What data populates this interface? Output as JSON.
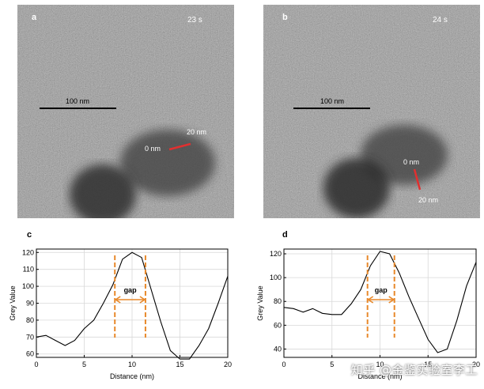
{
  "images": [
    {
      "letter": "a",
      "time": "23 s",
      "scalebar": "100 nm",
      "start_label": "0 nm",
      "end_label": "20 nm"
    },
    {
      "letter": "b",
      "time": "24 s",
      "scalebar": "100 nm",
      "start_label": "0 nm",
      "end_label": "20 nm"
    }
  ],
  "chart_data": [
    {
      "type": "line",
      "panel": "c",
      "xlabel": "Distance (nm)",
      "ylabel": "Grey Value",
      "xlim": [
        0,
        20
      ],
      "ylim": [
        58,
        122
      ],
      "xticks": [
        0,
        5,
        10,
        15,
        20
      ],
      "yticks": [
        60,
        70,
        80,
        90,
        100,
        110,
        120
      ],
      "grid": true,
      "annotation": "gap",
      "gap_range": [
        8.2,
        11.4
      ],
      "series": [
        {
          "x": [
            0,
            1,
            2,
            3,
            4,
            5,
            6,
            7,
            8,
            9,
            10,
            11,
            12,
            13,
            14,
            15,
            16,
            17,
            18,
            19,
            20
          ],
          "values": [
            70,
            71,
            68,
            65,
            68,
            75,
            80,
            90,
            101,
            116,
            120,
            117,
            98,
            79,
            62,
            57,
            57,
            65,
            75,
            90,
            106
          ]
        }
      ]
    },
    {
      "type": "line",
      "panel": "d",
      "xlabel": "Distance (nm)",
      "ylabel": "Grey Value",
      "xlim": [
        0,
        20
      ],
      "ylim": [
        33,
        124
      ],
      "xticks": [
        0,
        5,
        10,
        15,
        20
      ],
      "yticks": [
        40,
        60,
        80,
        100,
        120
      ],
      "grid": true,
      "annotation": "gap",
      "gap_range": [
        8.7,
        11.5
      ],
      "series": [
        {
          "x": [
            0,
            1,
            2,
            3,
            4,
            5,
            6,
            7,
            8,
            9,
            10,
            11,
            12,
            13,
            14,
            15,
            16,
            17,
            18,
            19,
            20
          ],
          "values": [
            75,
            74,
            71,
            74,
            70,
            69,
            69,
            78,
            90,
            110,
            122,
            120,
            104,
            84,
            66,
            48,
            37,
            40,
            64,
            93,
            113
          ]
        }
      ]
    }
  ],
  "panel_letters": {
    "c": "c",
    "d": "d"
  },
  "watermark": "知乎 @金鉴实验室李工"
}
